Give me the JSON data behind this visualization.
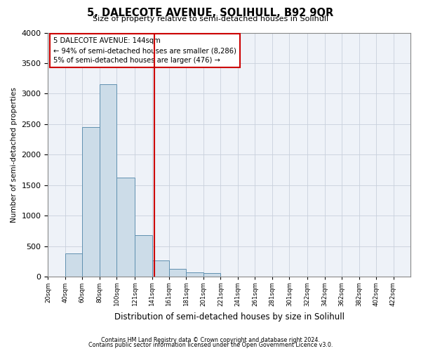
{
  "title": "5, DALECOTE AVENUE, SOLIHULL, B92 9QR",
  "subtitle": "Size of property relative to semi-detached houses in Solihull",
  "xlabel": "Distribution of semi-detached houses by size in Solihull",
  "ylabel": "Number of semi-detached properties",
  "footnote1": "Contains HM Land Registry data © Crown copyright and database right 2024.",
  "footnote2": "Contains public sector information licensed under the Open Government Licence v3.0.",
  "annotation_title": "5 DALECOTE AVENUE: 144sqm",
  "annotation_line1": "← 94% of semi-detached houses are smaller (8,286)",
  "annotation_line2": "5% of semi-detached houses are larger (476) →",
  "bar_color": "#ccdce8",
  "bar_edge_color": "#6090b0",
  "vline_color": "#cc0000",
  "vline_x": 144,
  "annotation_box_color": "#cc0000",
  "grid_color": "#c8d0dc",
  "bg_color": "#eef2f8",
  "categories": [
    "20sqm",
    "40sqm",
    "60sqm",
    "80sqm",
    "100sqm",
    "121sqm",
    "141sqm",
    "161sqm",
    "181sqm",
    "201sqm",
    "221sqm",
    "241sqm",
    "261sqm",
    "281sqm",
    "301sqm",
    "322sqm",
    "342sqm",
    "362sqm",
    "382sqm",
    "402sqm",
    "422sqm"
  ],
  "bin_edges": [
    20,
    40,
    60,
    80,
    100,
    121,
    141,
    161,
    181,
    201,
    221,
    241,
    261,
    281,
    301,
    322,
    342,
    362,
    382,
    402,
    422,
    442
  ],
  "values": [
    8,
    380,
    2450,
    3150,
    1620,
    680,
    270,
    130,
    70,
    60,
    0,
    0,
    0,
    0,
    0,
    0,
    0,
    0,
    0,
    0,
    0
  ],
  "ylim": [
    0,
    4000
  ],
  "yticks": [
    0,
    500,
    1000,
    1500,
    2000,
    2500,
    3000,
    3500,
    4000
  ]
}
